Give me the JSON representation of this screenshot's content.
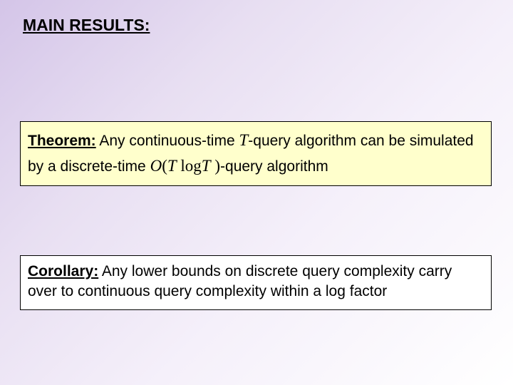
{
  "heading": "MAIN RESULTS:",
  "theorem": {
    "label": "Theorem:",
    "part1": " Any continuous-time ",
    "T1": "T",
    "part2": "-query algorithm can be simulated by a discrete-time ",
    "O": "O",
    "lparen": "(",
    "T2": "T",
    "space1": " ",
    "log": "log",
    "T3": "T",
    "space2": " ",
    "rparen": ")",
    "part3": "-query algorithm",
    "box_background": "#ffffcc",
    "box_border": "#000000"
  },
  "corollary": {
    "label": "Corollary:",
    "text": " Any lower bounds on discrete query complexity carry over to continuous query complexity within a log factor",
    "box_background": "#ffffff",
    "box_border": "#000000"
  },
  "style": {
    "background_gradient_start": "#d4c5e8",
    "background_gradient_end": "#ffffff",
    "heading_fontsize": 23,
    "body_fontsize": 21,
    "math_fontsize": 23,
    "font_family_body": "Arial",
    "font_family_math": "Times New Roman"
  }
}
